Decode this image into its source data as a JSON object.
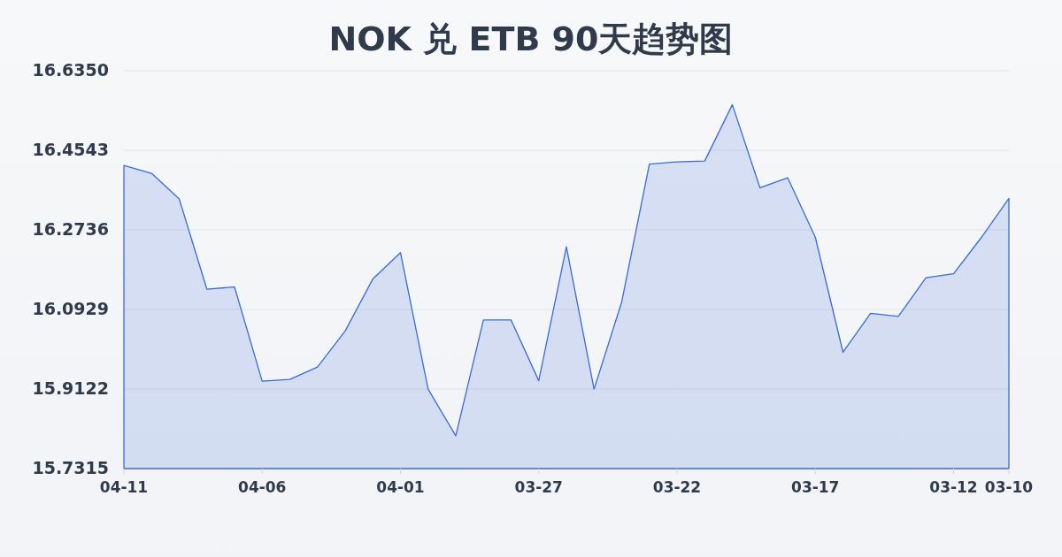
{
  "chart_data": {
    "type": "area",
    "title": "NOK 兑 ETB 90天趋势图",
    "x": [
      "--04-11",
      "--04-10",
      "--04-09",
      "--04-08",
      "--04-07",
      "--04-06",
      "--04-05",
      "--04-04",
      "--04-03",
      "--04-02",
      "--04-01",
      "--03-31",
      "--03-30",
      "--03-29",
      "--03-28",
      "--03-27",
      "--03-26",
      "--03-25",
      "--03-24",
      "--03-23",
      "--03-22",
      "--03-21",
      "--03-20",
      "--03-19",
      "--03-18",
      "--03-17",
      "--03-16",
      "--03-15",
      "--03-14",
      "--03-13",
      "--03-12",
      "--03-11",
      "--03-10"
    ],
    "values": [
      16.42,
      16.402,
      16.344,
      16.139,
      16.144,
      15.93,
      15.934,
      15.962,
      16.044,
      16.162,
      16.222,
      15.912,
      15.806,
      16.069,
      16.069,
      15.931,
      16.235,
      15.912,
      16.11,
      16.423,
      16.428,
      16.43,
      16.558,
      16.369,
      16.392,
      16.257,
      15.996,
      16.084,
      16.077,
      16.165,
      16.174,
      16.256,
      16.345
    ],
    "color": "#3a6bd4",
    "xlim": [
      "--04-11",
      "--03-10"
    ],
    "xticks": [
      {
        "value": "--04-11",
        "label": "04-11"
      },
      {
        "value": "--04-06",
        "label": "04-06"
      },
      {
        "value": "--04-01",
        "label": "04-01"
      },
      {
        "value": "--03-27",
        "label": "03-27"
      },
      {
        "value": "--03-22",
        "label": "03-22"
      },
      {
        "value": "--03-17",
        "label": "03-17"
      },
      {
        "value": "--03-12",
        "label": "03-12"
      },
      {
        "value": "--03-10",
        "label": "03-10"
      }
    ],
    "ylim": [
      15.7315,
      16.635
    ],
    "yticks": [
      15.7315,
      15.9122,
      16.0929,
      16.2736,
      16.4543,
      {
        "value": 16.635,
        "label": "16.6350"
      }
    ],
    "grid": "y"
  }
}
